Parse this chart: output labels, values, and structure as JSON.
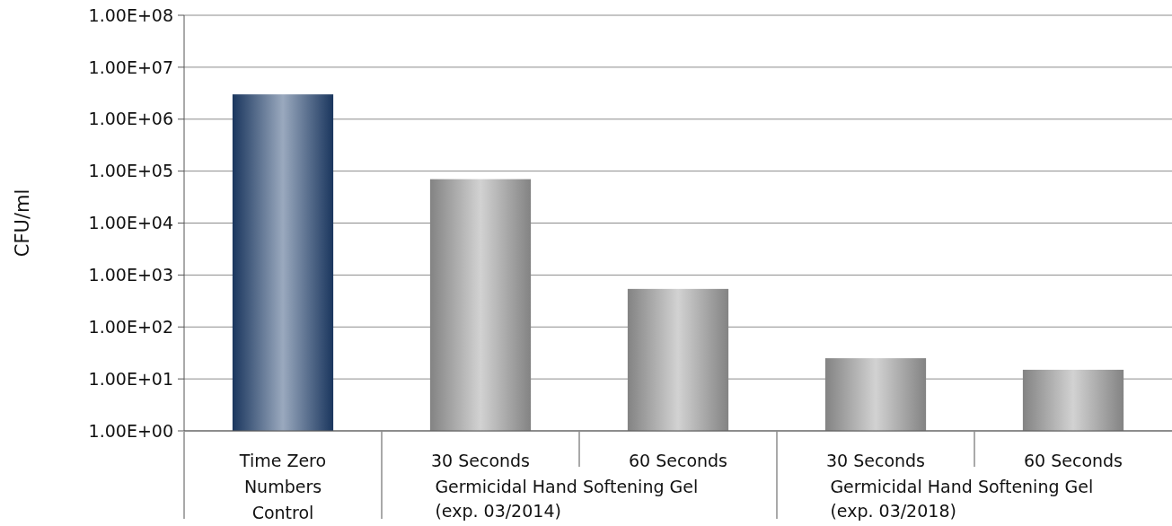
{
  "chart_data": {
    "type": "bar",
    "ylabel": "CFU/ml",
    "log": true,
    "categories": [
      "Time Zero\nNumbers\nControl",
      "30 Seconds",
      "60 Seconds",
      "30 Seconds",
      "60 Seconds"
    ],
    "values": [
      3000000,
      70000,
      540,
      25,
      15
    ],
    "colors": [
      "#1f3f6e",
      "#9a9a9a",
      "#9a9a9a",
      "#9a9a9a",
      "#9a9a9a"
    ],
    "ylim": [
      1,
      100000000
    ],
    "yticks": [
      {
        "value": 1,
        "label": "1.00E+00"
      },
      {
        "value": 10,
        "label": "1.00E+01"
      },
      {
        "value": 100,
        "label": "1.00E+02"
      },
      {
        "value": 1000,
        "label": "1.00E+03"
      },
      {
        "value": 10000,
        "label": "1.00E+04"
      },
      {
        "value": 100000,
        "label": "1.00E+05"
      },
      {
        "value": 1000000,
        "label": "1.00E+06"
      },
      {
        "value": 10000000,
        "label": "1.00E+07"
      },
      {
        "value": 100000000,
        "label": "1.00E+08"
      }
    ],
    "grid": "y",
    "annotations": [
      "Germicidal Hand Softening Gel\n(exp. 03/2014)",
      "Germicidal Hand Softening Gel\n(exp. 03/2018)"
    ]
  }
}
